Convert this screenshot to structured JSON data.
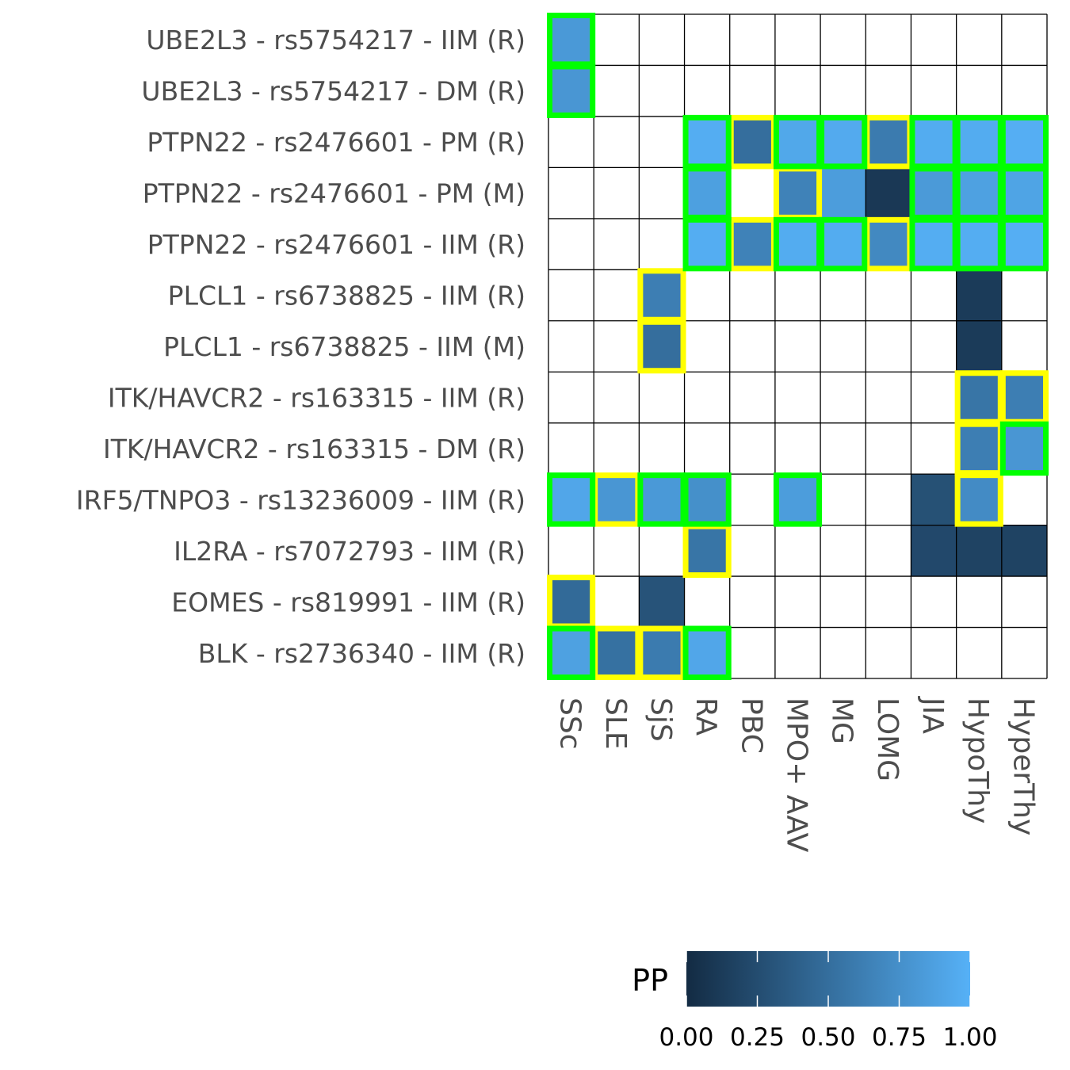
{
  "chart_data": {
    "type": "heatmap",
    "rows": [
      "UBE2L3 - rs5754217 - IIM (R)",
      "UBE2L3 - rs5754217 - DM (R)",
      "PTPN22 - rs2476601 - PM (R)",
      "PTPN22 - rs2476601 - PM (M)",
      "PTPN22 - rs2476601 - IIM (R)",
      "PLCL1 - rs6738825 - IIM (R)",
      "PLCL1 - rs6738825 - IIM (M)",
      "ITK/HAVCR2 - rs163315 - IIM (R)",
      "ITK/HAVCR2 - rs163315 - DM (R)",
      "IRF5/TNPO3 - rs13236009 - IIM (R)",
      "IL2RA - rs7072793 - IIM (R)",
      "EOMES - rs819991 - IIM (R)",
      "BLK - rs2736340 - IIM (R)"
    ],
    "columns": [
      "SSc",
      "SLE",
      "SjS",
      "RA",
      "PBC",
      "MPO+ AAV",
      "MG",
      "LOMG",
      "JIA",
      "HypoThy",
      "HyperThy"
    ],
    "values": [
      [
        0.82,
        null,
        null,
        null,
        null,
        null,
        null,
        null,
        null,
        null,
        null
      ],
      [
        0.8,
        null,
        null,
        null,
        null,
        null,
        null,
        null,
        null,
        null,
        null
      ],
      [
        null,
        null,
        null,
        0.97,
        0.5,
        0.93,
        0.95,
        0.6,
        0.96,
        0.96,
        0.98
      ],
      [
        null,
        null,
        null,
        0.87,
        null,
        0.65,
        0.85,
        0.1,
        0.83,
        0.88,
        0.9
      ],
      [
        null,
        null,
        null,
        0.97,
        0.65,
        0.96,
        0.96,
        0.7,
        0.97,
        0.97,
        0.98
      ],
      [
        null,
        null,
        0.62,
        null,
        null,
        null,
        null,
        null,
        null,
        0.12,
        null
      ],
      [
        null,
        null,
        0.5,
        null,
        null,
        null,
        null,
        null,
        null,
        0.12,
        null
      ],
      [
        null,
        null,
        null,
        null,
        null,
        null,
        null,
        null,
        null,
        0.55,
        0.62
      ],
      [
        null,
        null,
        null,
        null,
        null,
        null,
        null,
        null,
        null,
        0.62,
        0.8
      ],
      [
        0.92,
        0.8,
        0.82,
        0.75,
        null,
        0.85,
        null,
        null,
        0.28,
        0.72,
        null
      ],
      [
        null,
        null,
        null,
        0.55,
        null,
        null,
        null,
        null,
        0.22,
        0.18,
        0.18
      ],
      [
        0.47,
        null,
        0.3,
        null,
        null,
        null,
        null,
        null,
        null,
        null,
        null
      ],
      [
        0.88,
        0.52,
        0.6,
        0.92,
        null,
        null,
        null,
        null,
        null,
        null,
        null
      ]
    ],
    "highlight_legend": {
      "green": "#00ff00",
      "yellow": "#ffff00"
    },
    "highlights": [
      [
        0,
        0,
        "green"
      ],
      [
        1,
        0,
        "green"
      ],
      [
        2,
        3,
        "green"
      ],
      [
        2,
        4,
        "yellow"
      ],
      [
        2,
        5,
        "green"
      ],
      [
        2,
        6,
        "green"
      ],
      [
        2,
        7,
        "yellow"
      ],
      [
        2,
        8,
        "green"
      ],
      [
        2,
        9,
        "green"
      ],
      [
        2,
        10,
        "green"
      ],
      [
        3,
        3,
        "green"
      ],
      [
        3,
        5,
        "yellow"
      ],
      [
        3,
        8,
        "green"
      ],
      [
        3,
        9,
        "green"
      ],
      [
        3,
        10,
        "green"
      ],
      [
        4,
        3,
        "green"
      ],
      [
        4,
        4,
        "yellow"
      ],
      [
        4,
        5,
        "green"
      ],
      [
        4,
        6,
        "green"
      ],
      [
        4,
        7,
        "yellow"
      ],
      [
        4,
        8,
        "green"
      ],
      [
        4,
        9,
        "green"
      ],
      [
        4,
        10,
        "green"
      ],
      [
        5,
        2,
        "yellow"
      ],
      [
        6,
        2,
        "yellow"
      ],
      [
        7,
        9,
        "yellow"
      ],
      [
        7,
        10,
        "yellow"
      ],
      [
        8,
        9,
        "yellow"
      ],
      [
        8,
        10,
        "green"
      ],
      [
        9,
        0,
        "green"
      ],
      [
        9,
        1,
        "yellow"
      ],
      [
        9,
        2,
        "green"
      ],
      [
        9,
        3,
        "green"
      ],
      [
        9,
        5,
        "green"
      ],
      [
        9,
        9,
        "yellow"
      ],
      [
        10,
        3,
        "yellow"
      ],
      [
        11,
        0,
        "yellow"
      ],
      [
        12,
        0,
        "green"
      ],
      [
        12,
        1,
        "yellow"
      ],
      [
        12,
        2,
        "yellow"
      ],
      [
        12,
        3,
        "green"
      ]
    ],
    "colorbar": {
      "title": "PP",
      "range": [
        0,
        1
      ],
      "ticks": [
        "0.00",
        "0.25",
        "0.50",
        "0.75",
        "1.00"
      ],
      "low_color": "#132b43",
      "high_color": "#56b1f7"
    },
    "grid": true,
    "legend_position": "bottom-right"
  }
}
